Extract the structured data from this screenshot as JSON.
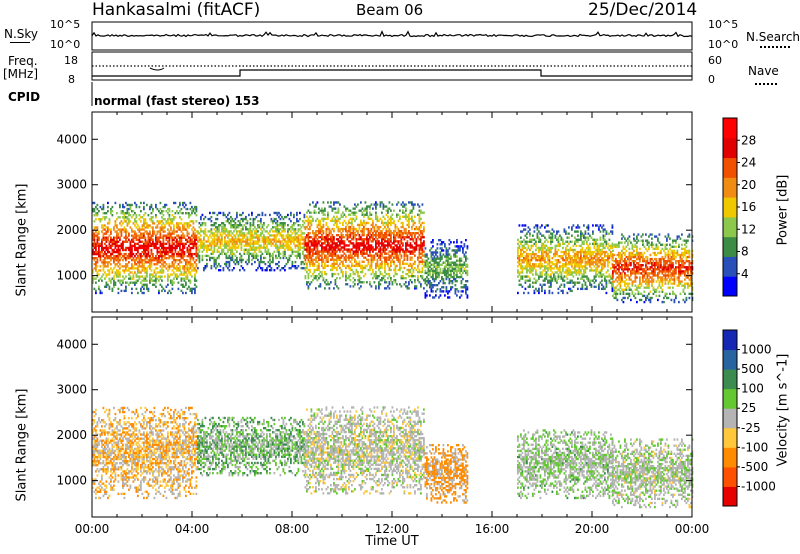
{
  "header": {
    "station": "Hankasalmi (fitACF)",
    "beam": "Beam 06",
    "date": "25/Dec/2014"
  },
  "summary": {
    "left_nsky": "N.Sky",
    "left_noise_top": "10^5",
    "left_noise_bottom": "10^0",
    "right_noise_top": "10^5",
    "right_noise_bottom": "10^0",
    "right_nsearch": "N.Search",
    "freq_label": "Freq.",
    "freq_unit": "[MHz]",
    "freq_top": "18",
    "freq_bottom": "8",
    "nave_top": "60",
    "nave_bottom": "0",
    "nave_label": "Nave",
    "cpid_label": "CPID",
    "cpid_text": "normal (fast stereo) 153"
  },
  "colors": {
    "power_scale": [
      "#0000ff",
      "#2850b8",
      "#3c8c46",
      "#8cc84c",
      "#f0c800",
      "#f08c14",
      "#f05000",
      "#e00000",
      "#ff0000"
    ],
    "velocity_scale": [
      "#e60000",
      "#ff5000",
      "#ff8c00",
      "#ffc83c",
      "#b4b4b4",
      "#64c832",
      "#3c8c50",
      "#2864a0",
      "#1428b4"
    ],
    "ground_scatter": "#b4b4b4"
  },
  "chart_data": [
    {
      "type": "heatmap",
      "name": "power",
      "title": "",
      "xlabel": "",
      "ylabel": "Slant Range [km]",
      "x_range": [
        "00:00",
        "24:00"
      ],
      "y_range": [
        200,
        4600
      ],
      "yticks": [
        "1000",
        "2000",
        "3000",
        "4000"
      ],
      "colorbar_label": "Power [dB]",
      "colorbar_ticks": [
        "4",
        "8",
        "12",
        "16",
        "20",
        "24",
        "28"
      ],
      "colorbar_range": [
        0,
        32
      ],
      "scatter_regions": [
        {
          "t_start": 0.0,
          "t_end": 4.2,
          "r_low": 600,
          "r_high": 2600,
          "power_dB": 28
        },
        {
          "t_start": 4.2,
          "t_end": 8.5,
          "r_low": 1100,
          "r_high": 2400,
          "power_dB": 18
        },
        {
          "t_start": 8.5,
          "t_end": 13.3,
          "r_low": 700,
          "r_high": 2600,
          "power_dB": 28
        },
        {
          "t_start": 13.3,
          "t_end": 15.0,
          "r_low": 500,
          "r_high": 1800,
          "power_dB": 12
        },
        {
          "t_start": 17.0,
          "t_end": 20.8,
          "r_low": 600,
          "r_high": 2100,
          "power_dB": 20
        },
        {
          "t_start": 20.8,
          "t_end": 24.0,
          "r_low": 400,
          "r_high": 1900,
          "power_dB": 26
        }
      ]
    },
    {
      "type": "heatmap",
      "name": "velocity",
      "title": "",
      "xlabel": "Time UT",
      "ylabel": "Slant Range [km]",
      "x_range": [
        "00:00",
        "24:00"
      ],
      "xticks": [
        "00:00",
        "04:00",
        "08:00",
        "12:00",
        "16:00",
        "20:00",
        "00:00"
      ],
      "y_range": [
        200,
        4600
      ],
      "yticks": [
        "1000",
        "2000",
        "3000",
        "4000"
      ],
      "colorbar_label": "Velocity [m s^-1]",
      "colorbar_ticks": [
        "1000",
        "500",
        "100",
        "25",
        "-25",
        "-100",
        "-500",
        "-1000"
      ],
      "scatter_regions": [
        {
          "t_start": 0.0,
          "t_end": 4.2,
          "r_low": 600,
          "r_high": 2600,
          "velocity": -100
        },
        {
          "t_start": 4.2,
          "t_end": 8.5,
          "r_low": 1100,
          "r_high": 2400,
          "velocity": 100
        },
        {
          "t_start": 8.5,
          "t_end": 13.3,
          "r_low": 700,
          "r_high": 2600,
          "velocity": 0
        },
        {
          "t_start": 13.3,
          "t_end": 15.0,
          "r_low": 500,
          "r_high": 1800,
          "velocity": -300
        },
        {
          "t_start": 17.0,
          "t_end": 20.8,
          "r_low": 600,
          "r_high": 2100,
          "velocity": 50
        },
        {
          "t_start": 20.8,
          "t_end": 24.0,
          "r_low": 400,
          "r_high": 1900,
          "velocity": 20
        }
      ]
    }
  ]
}
